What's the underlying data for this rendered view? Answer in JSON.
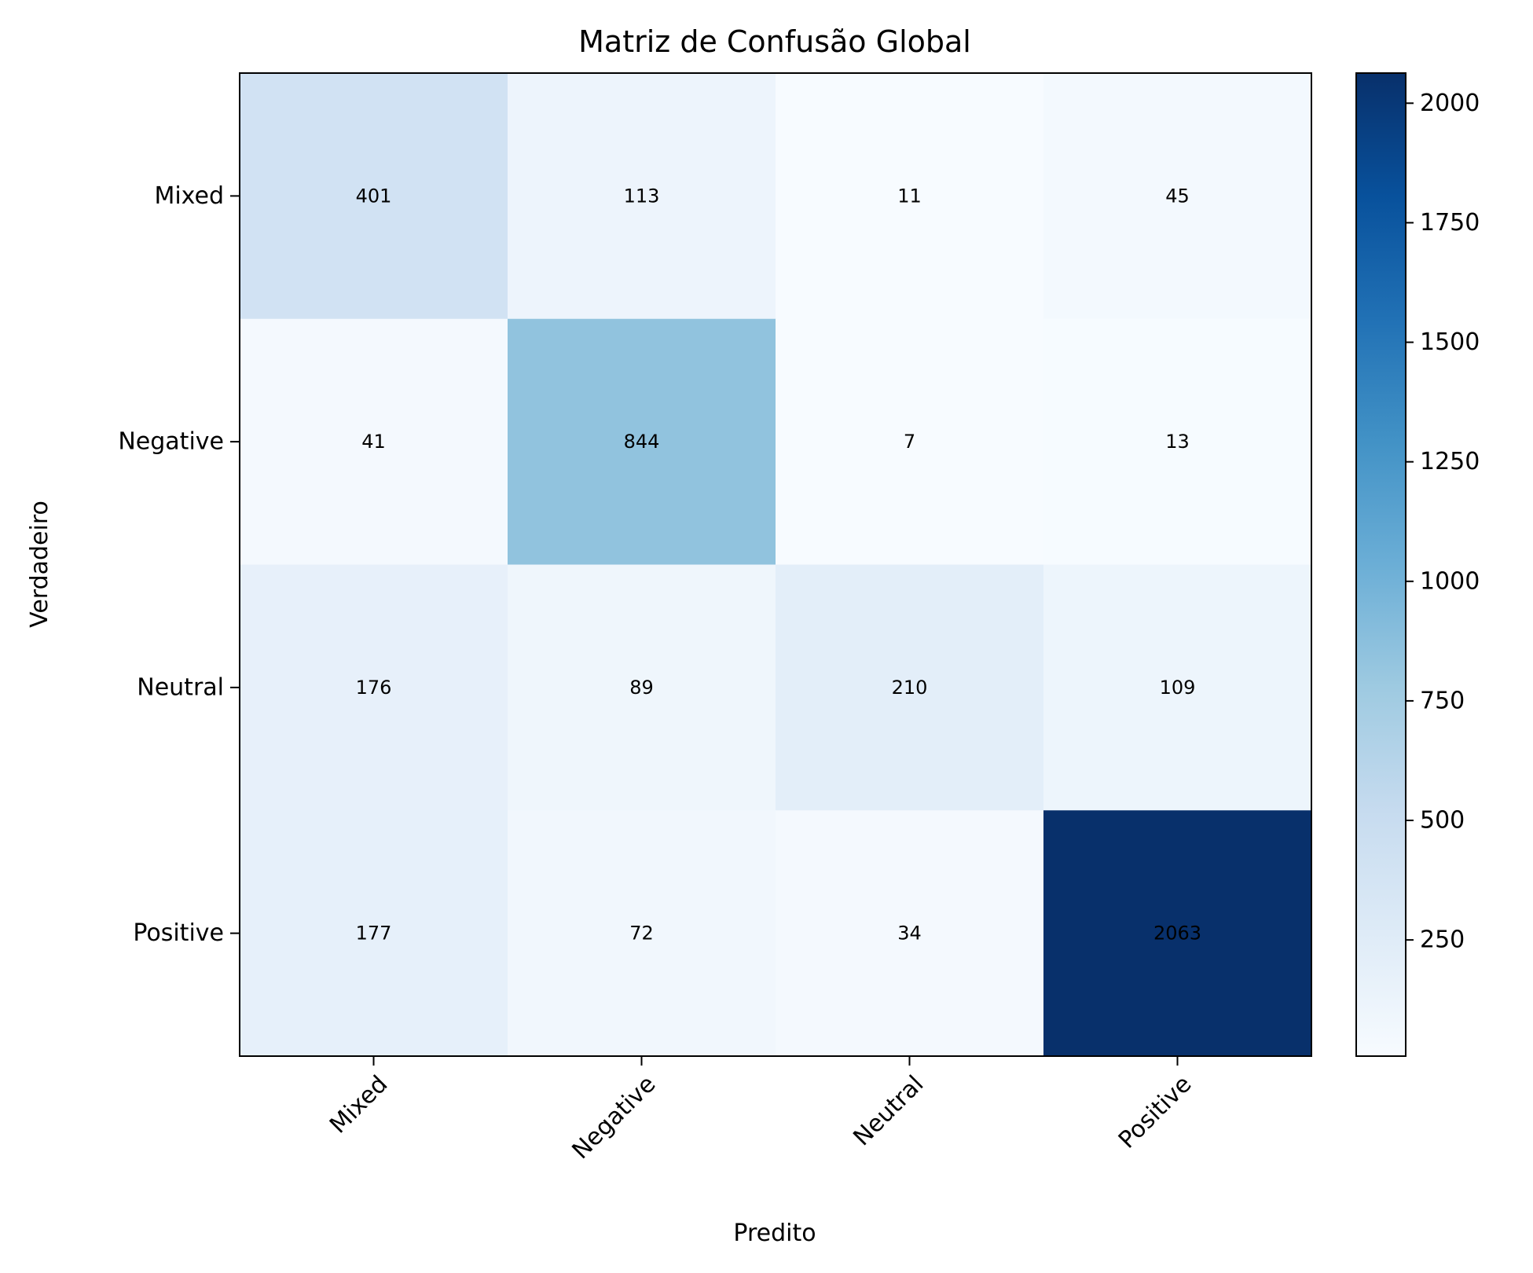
{
  "chart_data": {
    "type": "heatmap",
    "title": "Matriz de Confusão Global",
    "xlabel": "Predito",
    "ylabel": "Verdadeiro",
    "x_categories": [
      "Mixed",
      "Negative",
      "Neutral",
      "Positive"
    ],
    "y_categories": [
      "Mixed",
      "Negative",
      "Neutral",
      "Positive"
    ],
    "values": [
      [
        401,
        113,
        11,
        45
      ],
      [
        41,
        844,
        7,
        13
      ],
      [
        176,
        89,
        210,
        109
      ],
      [
        177,
        72,
        34,
        2063
      ]
    ],
    "colormap": "Blues",
    "color_range": [
      7,
      2063
    ],
    "colorbar_ticks": [
      250,
      500,
      750,
      1000,
      1250,
      1500,
      1750,
      2000
    ],
    "colorbar_tick_labels": [
      "250",
      "500",
      "750",
      "1000",
      "1250",
      "1500",
      "1750",
      "2000"
    ]
  }
}
